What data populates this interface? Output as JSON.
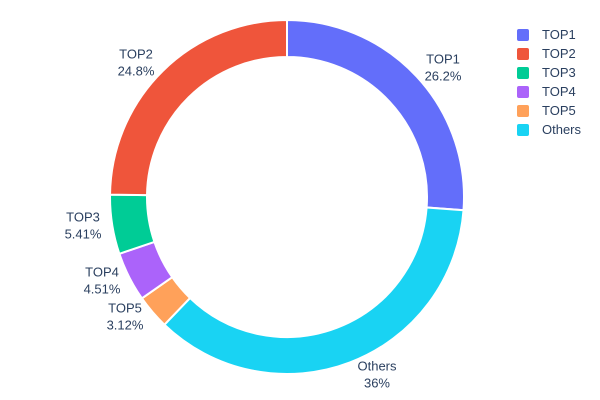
{
  "chart_data": {
    "type": "pie",
    "subtype": "donut",
    "hole_ratio": 0.79,
    "labels": [
      "TOP1",
      "TOP2",
      "TOP3",
      "TOP4",
      "TOP5",
      "Others"
    ],
    "values": [
      26.2,
      24.8,
      5.41,
      4.51,
      3.12,
      36
    ],
    "percent_labels": [
      "26.2%",
      "24.8%",
      "5.41%",
      "4.51%",
      "3.12%",
      "36%"
    ],
    "colors": [
      "#636efa",
      "#ef553b",
      "#00cc96",
      "#ab63fa",
      "#ffa15a",
      "#19d3f3"
    ],
    "clockwise_order_from_top": [
      "TOP1",
      "Others",
      "TOP5",
      "TOP4",
      "TOP3",
      "TOP2"
    ],
    "legend": {
      "position": "right",
      "entries": [
        "TOP1",
        "TOP2",
        "TOP3",
        "TOP4",
        "TOP5",
        "Others"
      ]
    },
    "title": "",
    "text_color": "#2a3f5f",
    "background_color": "#ffffff",
    "slice_gap_color": "#ffffff"
  }
}
